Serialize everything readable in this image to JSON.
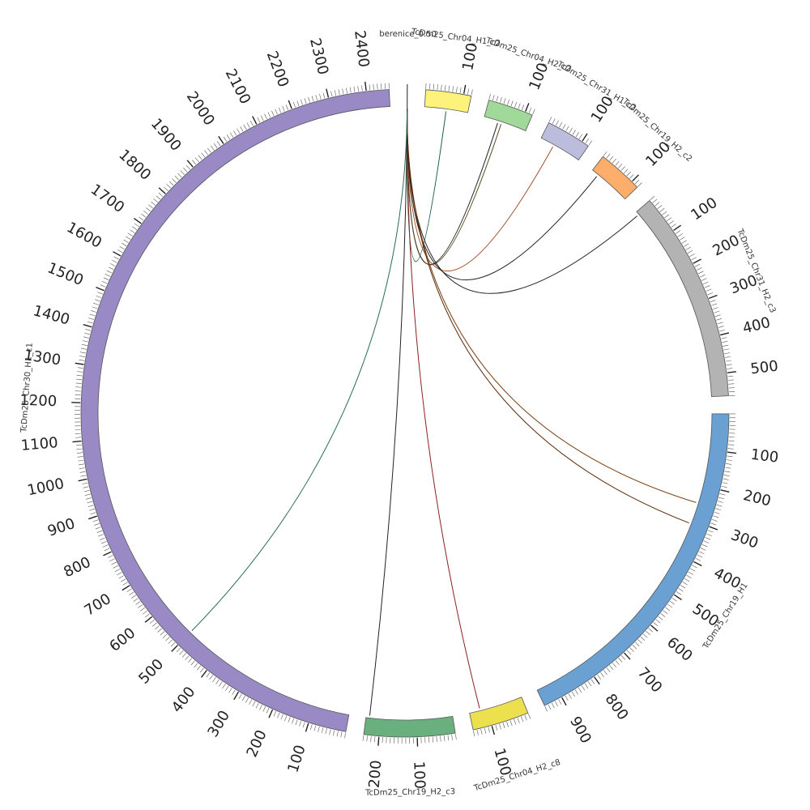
{
  "chart_data": {
    "type": "chord",
    "unit_size": 1,
    "segments": [
      {
        "name": "berenice_0.50",
        "length": 1,
        "color": "#ffffff",
        "ticks": []
      },
      {
        "name": "TcDm25_Chr04_H1_c2",
        "length": 120,
        "color": "#fdf37c",
        "ticks": [
          100
        ]
      },
      {
        "name": "TcDm25_Chr04_H2_c2",
        "length": 120,
        "color": "#a1d99b",
        "ticks": [
          100
        ]
      },
      {
        "name": "TcDm25_Chr31_H1_c2",
        "length": 120,
        "color": "#bcbddc",
        "ticks": [
          100
        ]
      },
      {
        "name": "TcDm25_Chr19_H2_c2",
        "length": 120,
        "color": "#fdae6b",
        "ticks": [
          100
        ]
      },
      {
        "name": "TcDm25_Chr31_H2_c3",
        "length": 560,
        "color": "#b3b3b3",
        "ticks": [
          100,
          200,
          300,
          400,
          500
        ]
      },
      {
        "name": "TcDm25_Chr19_H1",
        "length": 950,
        "color": "#6aa0d2",
        "ticks": [
          100,
          200,
          300,
          400,
          500,
          600,
          700,
          800,
          900
        ]
      },
      {
        "name": "TcDm25_Chr04_H2_c8",
        "length": 150,
        "color": "#ede04f",
        "ticks": [
          100
        ]
      },
      {
        "name": "TcDm25_Chr19_H2_c3",
        "length": 240,
        "color": "#6ab07f",
        "ticks": [
          100,
          200
        ]
      },
      {
        "name": "TcDm25_Chr30_H1_c1",
        "length": 2460,
        "color": "#998ac6",
        "ticks": [
          100,
          200,
          300,
          400,
          500,
          600,
          700,
          800,
          900,
          1000,
          1100,
          1200,
          1300,
          1400,
          1500,
          1600,
          1700,
          1800,
          1900,
          2000,
          2100,
          2200,
          2300,
          2400
        ]
      }
    ],
    "links": [
      {
        "from": 0,
        "to": 1,
        "pos_to": 60,
        "color": "#1b5e4a"
      },
      {
        "from": 0,
        "to": 2,
        "pos_to": 40,
        "color": "#222222"
      },
      {
        "from": 0,
        "to": 2,
        "pos_to": 50,
        "color": "#5a4a20"
      },
      {
        "from": 0,
        "to": 3,
        "pos_to": 40,
        "color": "#a0522d"
      },
      {
        "from": 0,
        "to": 4,
        "pos_to": 20,
        "color": "#222222"
      },
      {
        "from": 0,
        "to": 5,
        "pos_to": 10,
        "color": "#222222"
      },
      {
        "from": 0,
        "to": 6,
        "pos_to": 250,
        "color": "#7a3d10"
      },
      {
        "from": 0,
        "to": 6,
        "pos_to": 310,
        "color": "#5a2a0a"
      },
      {
        "from": 0,
        "to": 7,
        "pos_to": 120,
        "color": "#8b2020"
      },
      {
        "from": 0,
        "to": 8,
        "pos_to": 230,
        "color": "#222222"
      },
      {
        "from": 0,
        "to": 9,
        "pos_to": 500,
        "color": "#2a6a5a"
      }
    ]
  }
}
